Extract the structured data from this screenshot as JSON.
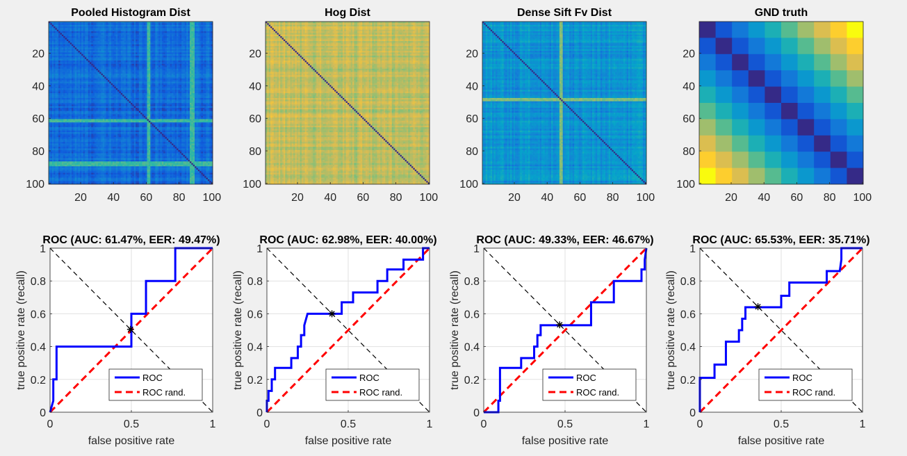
{
  "window": {
    "background": "#f0f0f0"
  },
  "colors": {
    "roc_line": "#0000ff",
    "rand_line": "#ff0000",
    "diag_line": "#000000",
    "grid": "#e1e1e1",
    "parula": [
      "#352a87",
      "#0f5cdd",
      "#1481d6",
      "#06a4ca",
      "#2eb7a4",
      "#87bf77",
      "#d1bb59",
      "#fec832",
      "#f9fb0e"
    ]
  },
  "chart_data": [
    {
      "type": "heatmap",
      "title": "Pooled Histogram Dist",
      "xticks": [
        "20",
        "40",
        "60",
        "80",
        "100"
      ],
      "yticks": [
        "20",
        "40",
        "60",
        "80",
        "100"
      ],
      "size": 100,
      "base_level": 0.18,
      "diagonal_level": 0.0,
      "bright_rows": [
        60,
        61,
        86,
        87,
        88
      ],
      "bright_cols": [
        60,
        61,
        86,
        87,
        88
      ],
      "bright_level": 0.52
    },
    {
      "type": "heatmap",
      "title": "Hog Dist",
      "xticks": [
        "20",
        "40",
        "60",
        "80",
        "100"
      ],
      "yticks": [
        "20",
        "40",
        "60",
        "80",
        "100"
      ],
      "size": 100,
      "base_level": 0.72,
      "diagonal_level": 0.0,
      "bright_rows": [],
      "bright_cols": [],
      "bright_level": 0.8
    },
    {
      "type": "heatmap",
      "title": "Dense Sift Fv Dist",
      "xticks": [
        "20",
        "40",
        "60",
        "80",
        "100"
      ],
      "yticks": [
        "20",
        "40",
        "60",
        "80",
        "100"
      ],
      "size": 100,
      "base_level": 0.32,
      "diagonal_level": 0.0,
      "bright_rows": [
        47,
        48
      ],
      "bright_cols": [
        47,
        48
      ],
      "bright_level": 0.62
    },
    {
      "type": "heatmap",
      "title": "GND truth",
      "xticks": [
        "20",
        "40",
        "60",
        "80",
        "100"
      ],
      "yticks": [
        "20",
        "40",
        "60",
        "80",
        "100"
      ],
      "size": 10,
      "block_matrix": "abs(i-j)/9"
    },
    {
      "type": "line",
      "title": "ROC (AUC: 61.47%, EER: 49.47%)",
      "xlabel": "false positive rate",
      "ylabel": "true positive rate (recall)",
      "xlim": [
        0,
        1
      ],
      "ylim": [
        0,
        1
      ],
      "xticks": [
        "0",
        "0.5",
        "1"
      ],
      "yticks": [
        "0",
        "0.2",
        "0.4",
        "0.6",
        "0.8",
        "1"
      ],
      "grid": true,
      "legend": {
        "position": "bottom-right",
        "entries": [
          "ROC",
          "ROC rand."
        ]
      },
      "series": [
        {
          "name": "ROC",
          "x": [
            0,
            0.02,
            0.02,
            0.04,
            0.04,
            0.5,
            0.5,
            0.59,
            0.59,
            0.77,
            0.77,
            1
          ],
          "y": [
            0,
            0.07,
            0.2,
            0.2,
            0.4,
            0.4,
            0.6,
            0.6,
            0.8,
            0.8,
            1,
            1
          ]
        },
        {
          "name": "ROC rand.",
          "x": [
            0,
            1
          ],
          "y": [
            0,
            1
          ]
        }
      ],
      "eer_point": [
        0.495,
        0.505
      ]
    },
    {
      "type": "line",
      "title": "ROC (AUC: 62.98%, EER: 40.00%)",
      "xlabel": "false positive rate",
      "ylabel": "true positive rate (recall)",
      "xlim": [
        0,
        1
      ],
      "ylim": [
        0,
        1
      ],
      "xticks": [
        "0",
        "0.5",
        "1"
      ],
      "yticks": [
        "0",
        "0.2",
        "0.4",
        "0.6",
        "0.8",
        "1"
      ],
      "grid": true,
      "legend": {
        "position": "bottom-right",
        "entries": [
          "ROC",
          "ROC rand."
        ]
      },
      "series": [
        {
          "name": "ROC",
          "x": [
            0,
            0,
            0.01,
            0.01,
            0.03,
            0.03,
            0.05,
            0.05,
            0.15,
            0.15,
            0.19,
            0.19,
            0.21,
            0.21,
            0.23,
            0.23,
            0.25,
            0.25,
            0.4,
            0.4,
            0.46,
            0.46,
            0.53,
            0.53,
            0.68,
            0.68,
            0.74,
            0.74,
            0.82,
            0.82,
            0.84,
            0.84,
            0.96,
            0.96,
            1
          ],
          "y": [
            0,
            0.07,
            0.07,
            0.13,
            0.13,
            0.2,
            0.2,
            0.27,
            0.27,
            0.33,
            0.33,
            0.4,
            0.4,
            0.47,
            0.47,
            0.53,
            0.6,
            0.6,
            0.6,
            0.6,
            0.6,
            0.67,
            0.67,
            0.73,
            0.73,
            0.8,
            0.8,
            0.87,
            0.87,
            0.87,
            0.87,
            0.93,
            0.93,
            1,
            1
          ]
        },
        {
          "name": "ROC rand.",
          "x": [
            0,
            1
          ],
          "y": [
            0,
            1
          ]
        }
      ],
      "eer_point": [
        0.4,
        0.6
      ]
    },
    {
      "type": "line",
      "title": "ROC (AUC: 49.33%, EER: 46.67%)",
      "xlabel": "false positive rate",
      "ylabel": "true positive rate (recall)",
      "xlim": [
        0,
        1
      ],
      "ylim": [
        0,
        1
      ],
      "xticks": [
        "0",
        "0.5",
        "1"
      ],
      "yticks": [
        "0",
        "0.2",
        "0.4",
        "0.6",
        "0.8",
        "1"
      ],
      "grid": true,
      "legend": {
        "position": "bottom-right",
        "entries": [
          "ROC",
          "ROC rand."
        ]
      },
      "series": [
        {
          "name": "ROC",
          "x": [
            0,
            0.09,
            0.09,
            0.1,
            0.1,
            0.23,
            0.23,
            0.28,
            0.28,
            0.31,
            0.31,
            0.33,
            0.33,
            0.35,
            0.35,
            0.37,
            0.37,
            0.66,
            0.66,
            0.8,
            0.8,
            0.97,
            0.97,
            0.99,
            0.99,
            1
          ],
          "y": [
            0,
            0,
            0.07,
            0.07,
            0.27,
            0.27,
            0.33,
            0.33,
            0.33,
            0.33,
            0.4,
            0.4,
            0.47,
            0.47,
            0.53,
            0.53,
            0.53,
            0.53,
            0.67,
            0.67,
            0.8,
            0.8,
            0.87,
            0.87,
            0.93,
            1
          ]
        },
        {
          "name": "ROC rand.",
          "x": [
            0,
            1
          ],
          "y": [
            0,
            1
          ]
        }
      ],
      "eer_point": [
        0.467,
        0.533
      ]
    },
    {
      "type": "line",
      "title": "ROC (AUC: 65.53%, EER: 35.71%)",
      "xlabel": "false positive rate",
      "ylabel": "true positive rate (recall)",
      "xlim": [
        0,
        1
      ],
      "ylim": [
        0,
        1
      ],
      "xticks": [
        "0",
        "0.5",
        "1"
      ],
      "yticks": [
        "0",
        "0.2",
        "0.4",
        "0.6",
        "0.8",
        "1"
      ],
      "grid": true,
      "legend": {
        "position": "bottom-right",
        "entries": [
          "ROC",
          "ROC rand."
        ]
      },
      "series": [
        {
          "name": "ROC",
          "x": [
            0,
            0,
            0.09,
            0.09,
            0.16,
            0.16,
            0.24,
            0.24,
            0.26,
            0.26,
            0.28,
            0.28,
            0.36,
            0.36,
            0.5,
            0.5,
            0.55,
            0.55,
            0.78,
            0.78,
            0.86,
            0.86,
            0.87,
            0.87,
            1
          ],
          "y": [
            0,
            0.21,
            0.21,
            0.29,
            0.29,
            0.43,
            0.43,
            0.5,
            0.5,
            0.57,
            0.57,
            0.64,
            0.64,
            0.64,
            0.64,
            0.71,
            0.71,
            0.79,
            0.79,
            0.86,
            0.86,
            0.86,
            0.93,
            1,
            1
          ]
        },
        {
          "name": "ROC rand.",
          "x": [
            0,
            1
          ],
          "y": [
            0,
            1
          ]
        }
      ],
      "eer_point": [
        0.357,
        0.643
      ]
    }
  ]
}
